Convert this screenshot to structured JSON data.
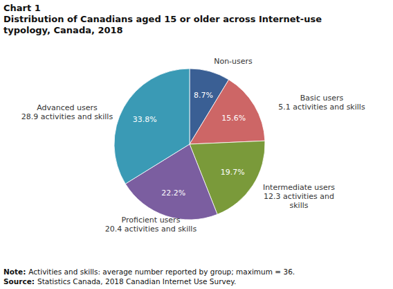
{
  "chart_data": {
    "type": "pie",
    "title": "Chart 1",
    "subtitle": "Distribution of Canadians aged 15 or older across Internet-use typology, Canada, 2018",
    "categories": [
      "Non-users",
      "Basic users",
      "Intermediate users",
      "Proficient users",
      "Advanced users"
    ],
    "category_notes": [
      null,
      "5.1 activities and skills",
      "12.3 activities and skills",
      "20.4 activities and skills",
      "28.9 activities and skills"
    ],
    "values": [
      8.7,
      15.6,
      19.7,
      22.2,
      33.8
    ],
    "value_labels": [
      "8.7%",
      "15.6%",
      "19.7%",
      "22.2%",
      "33.8%"
    ],
    "colors": [
      "#3a5f94",
      "#cd6666",
      "#7a9a3a",
      "#7b5ea0",
      "#3a9ab5"
    ],
    "data_labels": true
  },
  "footnotes": [
    {
      "label": "Note:",
      "text": "Activities and skills: average number reported by group; maximum = 36."
    },
    {
      "label": "Source:",
      "text": "Statistics Canada, 2018 Canadian Internet Use Survey."
    }
  ]
}
